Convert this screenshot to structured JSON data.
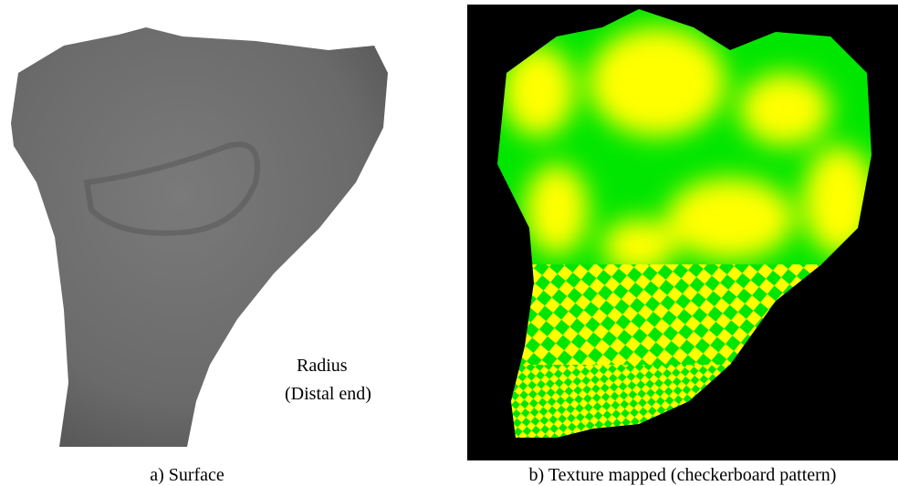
{
  "panels": [
    {
      "caption": "a) Surface",
      "annotation": [
        "Radius",
        "(Distal end)"
      ]
    },
    {
      "caption": "b) Texture mapped (checkerboard pattern)"
    }
  ]
}
